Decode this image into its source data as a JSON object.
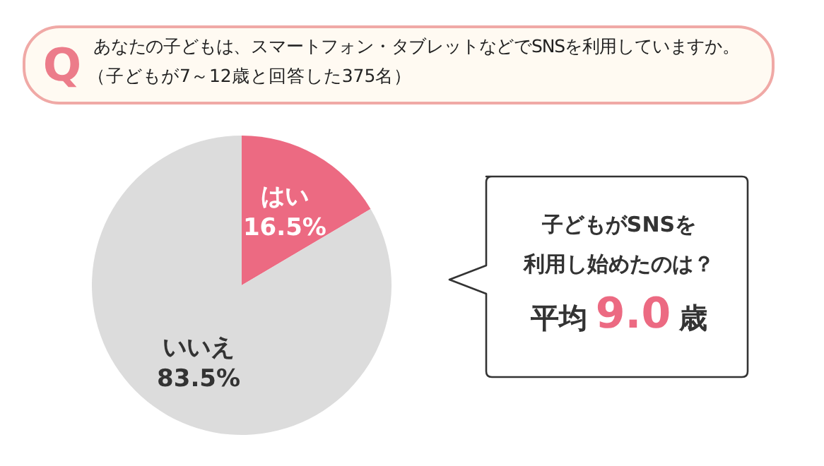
{
  "chart_data": {
    "type": "pie",
    "title": "あなたの子どもは、スマートフォン・タブレットなどでSNSを利用していますか。",
    "subtitle": "（子どもが7～12歳と回答した375名）",
    "categories": [
      "はい",
      "いいえ"
    ],
    "values": [
      16.5,
      83.5
    ],
    "colors": [
      "#ec6a82",
      "#dcdcdc"
    ],
    "value_labels": [
      "16.5%",
      "83.5%"
    ],
    "legend": false,
    "annotations": [
      "Q",
      "子どもがSNSを",
      "利用し始めたのは？",
      "平均",
      "9.0",
      "歳"
    ]
  }
}
